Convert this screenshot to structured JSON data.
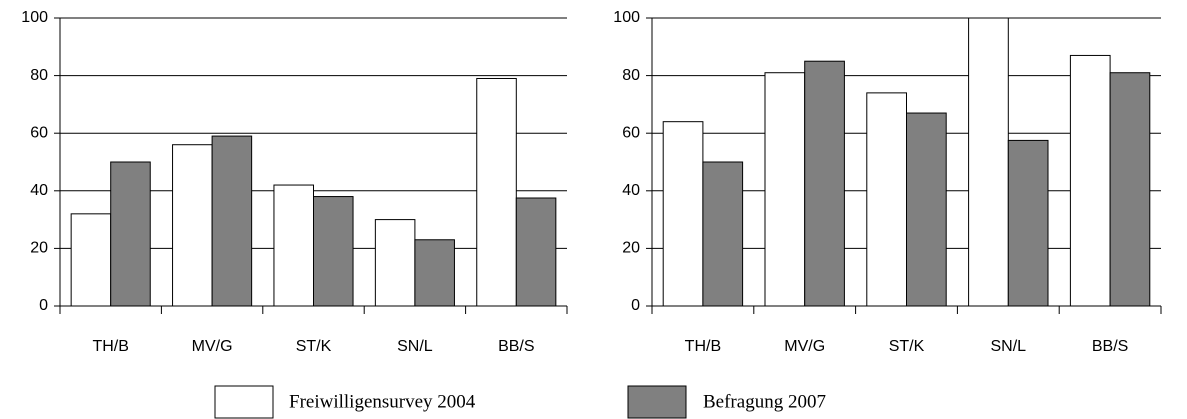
{
  "chart_data": [
    {
      "type": "bar",
      "categories": [
        "TH/B",
        "MV/G",
        "ST/K",
        "SN/L",
        "BB/S"
      ],
      "series": [
        {
          "name": "Freiwilligensurvey 2004",
          "color": "#ffffff",
          "values": [
            32,
            56,
            42,
            30,
            79
          ]
        },
        {
          "name": "Befragung 2007",
          "color": "#808080",
          "values": [
            50,
            59,
            38,
            23,
            37.5
          ]
        }
      ],
      "ylim": [
        0,
        100
      ],
      "yticks": [
        0,
        20,
        40,
        60,
        80,
        100
      ],
      "grid": true
    },
    {
      "type": "bar",
      "categories": [
        "TH/B",
        "MV/G",
        "ST/K",
        "SN/L",
        "BB/S"
      ],
      "series": [
        {
          "color": "#ffffff",
          "values": [
            64,
            81,
            74,
            100,
            87
          ]
        },
        {
          "color": "#808080",
          "values": [
            50,
            85,
            67,
            57.5,
            81
          ]
        }
      ],
      "ylim": [
        0,
        100
      ],
      "yticks": [
        0,
        20,
        40,
        60,
        80,
        100
      ],
      "grid": true
    }
  ]
}
